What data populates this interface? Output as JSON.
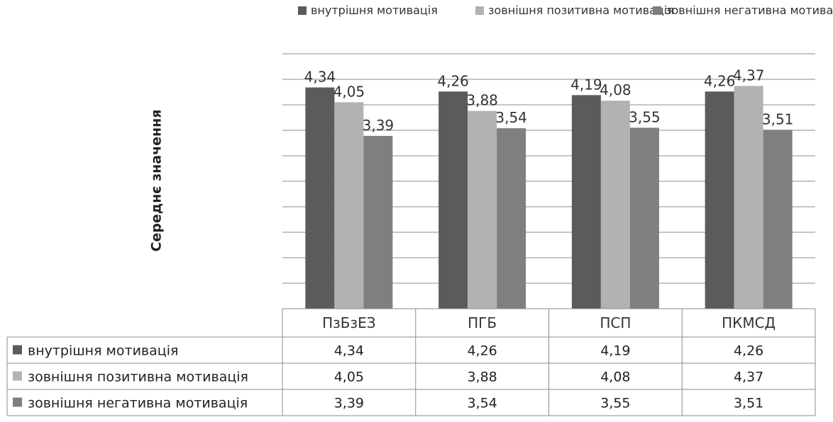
{
  "chart_data": {
    "type": "bar",
    "title": "",
    "xlabel": "",
    "ylabel": "Середнє значення",
    "categories": [
      "ПзБзЕЗ",
      "ПГБ",
      "ПСП",
      "ПКМСД"
    ],
    "series": [
      {
        "name": "внутрішня мотивація",
        "values": [
          4.34,
          4.26,
          4.19,
          4.26
        ],
        "labels": [
          "4,34",
          "4,26",
          "4,19",
          "4,26"
        ],
        "color": "#5b5b5b"
      },
      {
        "name": "зовнішня позитивна мотивація",
        "values": [
          4.05,
          3.88,
          4.08,
          4.37
        ],
        "labels": [
          "4,05",
          "3,88",
          "4,08",
          "4,37"
        ],
        "color": "#b2b2b2"
      },
      {
        "name": "зовнішня негативна мотивація",
        "values": [
          3.39,
          3.54,
          3.55,
          3.51
        ],
        "labels": [
          "3,39",
          "3,54",
          "3,55",
          "3,51"
        ],
        "color": "#7f7f7f"
      }
    ],
    "ylim": [
      0,
      5
    ],
    "grid": true,
    "legend": "top",
    "data_table": true
  }
}
